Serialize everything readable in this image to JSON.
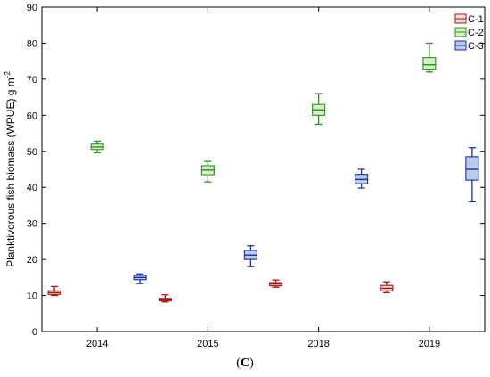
{
  "caption": {
    "open": "(",
    "letter": "C",
    "close": ")"
  },
  "chart_data": {
    "type": "box",
    "ylabel": "Planktivorous fish biomass (WPUE) g m",
    "ylabel_sup": "-2",
    "ylim": [
      0,
      90
    ],
    "yticks": [
      0,
      10,
      20,
      30,
      40,
      50,
      60,
      70,
      80,
      90
    ],
    "categories": [
      "2014",
      "2015",
      "2018",
      "2019"
    ],
    "grid": false,
    "legend_position": "top-right",
    "series": [
      {
        "name": "C-1",
        "stroke": "#a01818",
        "fill": "#f8dada",
        "boxes": [
          {
            "min": 10.0,
            "q1": 10.3,
            "median": 10.8,
            "q3": 11.3,
            "max": 12.5
          },
          {
            "min": 8.2,
            "q1": 8.5,
            "median": 8.8,
            "q3": 9.2,
            "max": 10.2
          },
          {
            "min": 12.3,
            "q1": 12.7,
            "median": 13.2,
            "q3": 13.6,
            "max": 14.3
          },
          {
            "min": 10.8,
            "q1": 11.3,
            "median": 12.0,
            "q3": 12.8,
            "max": 13.8
          }
        ]
      },
      {
        "name": "C-2",
        "stroke": "#2e9020",
        "fill": "#d8eec8",
        "boxes": [
          {
            "min": 49.6,
            "q1": 50.5,
            "median": 51.2,
            "q3": 52.0,
            "max": 52.8
          },
          {
            "min": 41.5,
            "q1": 43.5,
            "median": 44.8,
            "q3": 46.0,
            "max": 47.2
          },
          {
            "min": 57.5,
            "q1": 60.0,
            "median": 61.5,
            "q3": 63.0,
            "max": 66.0
          },
          {
            "min": 72.0,
            "q1": 72.8,
            "median": 74.0,
            "q3": 76.0,
            "max": 80.0
          }
        ]
      },
      {
        "name": "C-3",
        "stroke": "#1e2ea0",
        "fill": "#b8cce8",
        "boxes": [
          {
            "min": 13.3,
            "q1": 14.4,
            "median": 15.0,
            "q3": 15.6,
            "max": 16.0
          },
          {
            "min": 18.0,
            "q1": 20.0,
            "median": 21.2,
            "q3": 22.5,
            "max": 23.8
          },
          {
            "min": 39.8,
            "q1": 41.0,
            "median": 42.2,
            "q3": 43.6,
            "max": 45.0
          },
          {
            "min": 36.0,
            "q1": 42.0,
            "median": 45.0,
            "q3": 48.5,
            "max": 51.0
          }
        ]
      }
    ]
  }
}
